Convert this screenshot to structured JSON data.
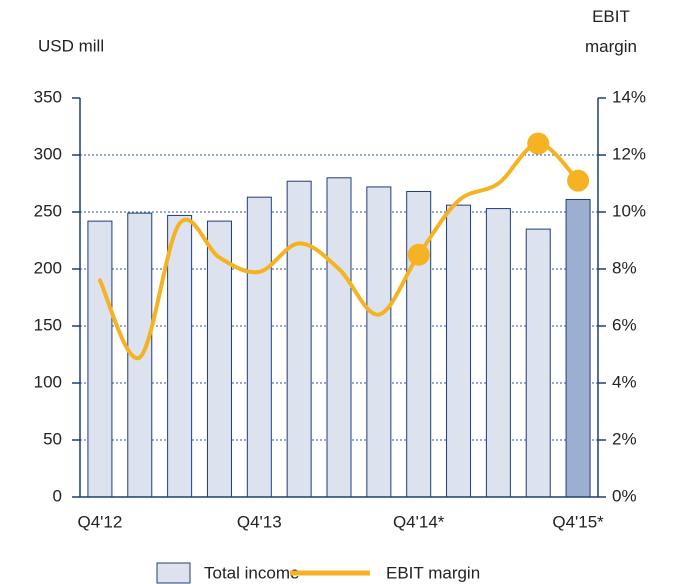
{
  "chart_data": {
    "type": "bar_line",
    "ylabel": "USD mill",
    "y2label": "EBIT margin",
    "categories": [
      "Q4'12",
      null,
      null,
      null,
      "Q4'13",
      null,
      null,
      null,
      "Q4'14*",
      null,
      null,
      null,
      "Q4'15*"
    ],
    "series": [
      {
        "name": "Total income",
        "type": "bar",
        "color": "#dce3ef",
        "edge_color": "#1f3d73",
        "colors": [
          "#dce3ef",
          "#dce3ef",
          "#dce3ef",
          "#dce3ef",
          "#dce3ef",
          "#dce3ef",
          "#dce3ef",
          "#dce3ef",
          "#dce3ef",
          "#dce3ef",
          "#dce3ef",
          "#dce3ef",
          "#9cafd0"
        ],
        "values": [
          242,
          249,
          247,
          242,
          263,
          277,
          280,
          272,
          268,
          256,
          253,
          235,
          261
        ]
      },
      {
        "name": "EBIT margin",
        "type": "line",
        "axis": "y2",
        "color": "#f5b323",
        "markers": [
          8,
          11,
          12
        ],
        "values": [
          7.6,
          4.9,
          9.6,
          8.4,
          7.9,
          8.9,
          8.0,
          6.4,
          8.5,
          10.4,
          11.0,
          12.4,
          11.1
        ]
      }
    ],
    "ylim": [
      0,
      350
    ],
    "yticks": [
      0,
      50,
      100,
      150,
      200,
      250,
      300,
      350
    ],
    "y2lim": [
      0,
      14
    ],
    "y2ticks": [
      {
        "value": 0,
        "label": "0%"
      },
      {
        "value": 2,
        "label": "2%"
      },
      {
        "value": 4,
        "label": "4%"
      },
      {
        "value": 6,
        "label": "6%"
      },
      {
        "value": 8,
        "label": "8%"
      },
      {
        "value": 10,
        "label": "10%"
      },
      {
        "value": 12,
        "label": "12%"
      },
      {
        "value": 14,
        "label": "14%"
      }
    ],
    "grid": true,
    "legend": "bottom"
  }
}
